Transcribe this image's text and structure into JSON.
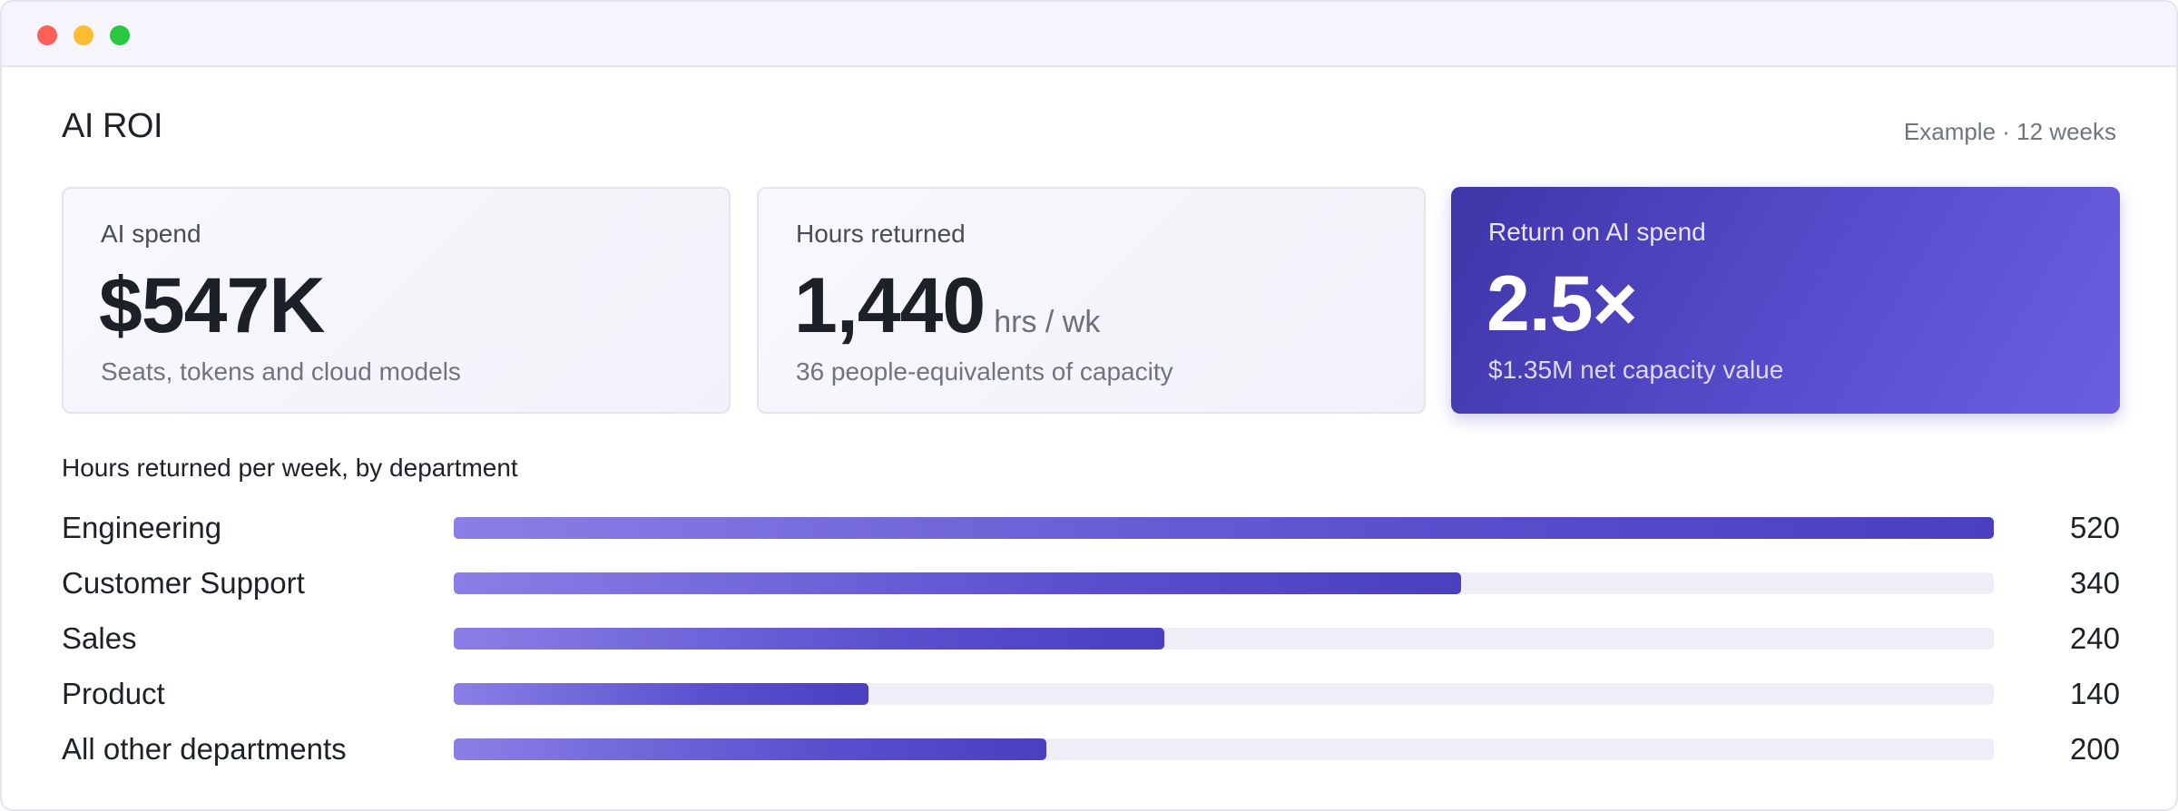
{
  "page": {
    "title": "AI ROI",
    "meta": "Example · 12 weeks"
  },
  "cards": [
    {
      "label": "AI spend",
      "value": "$547K",
      "unit": "",
      "subtitle": "Seats, tokens and cloud models"
    },
    {
      "label": "Hours returned",
      "value": "1,440",
      "unit": "hrs / wk",
      "subtitle": "36 people‑equivalents of capacity"
    },
    {
      "label": "Return on AI spend",
      "value": "2.5×",
      "unit": "",
      "subtitle": "$1.35M net capacity value"
    }
  ],
  "colors": {
    "accent": "#5a4fd0",
    "accent_dark": "#3f35a8",
    "track": "#efeef7"
  },
  "chart_data": {
    "type": "bar",
    "orientation": "horizontal",
    "title": "Hours returned per week, by department",
    "categories": [
      "Engineering",
      "Customer Support",
      "Sales",
      "Product",
      "All other departments"
    ],
    "values": [
      520,
      340,
      240,
      140,
      200
    ],
    "xlim": [
      0,
      520
    ],
    "grid": false,
    "legend": "none"
  }
}
